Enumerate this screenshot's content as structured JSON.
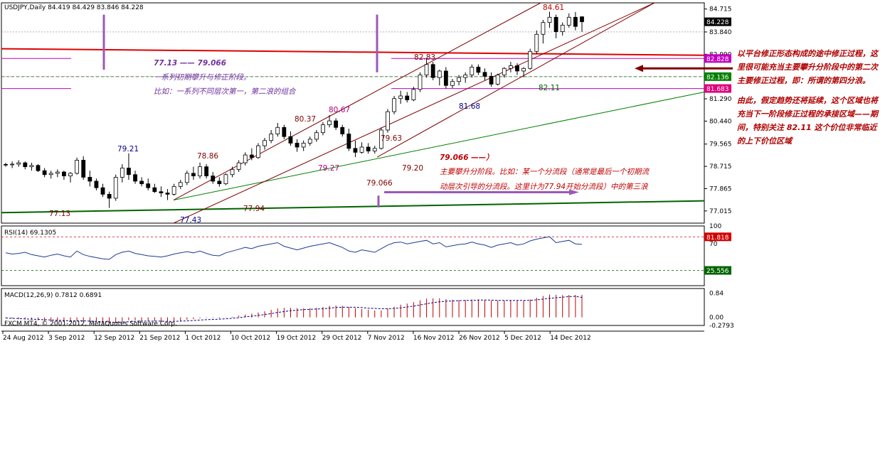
{
  "window": {
    "symbol_header": "USDJPY,Daily  84.419 84.429 83.846 84.228",
    "copyright": "FXCM MT4, © 2001-2012, MetaQuotes Software Corp."
  },
  "chart_data": [
    {
      "type": "candlestick",
      "title": "USDJPY,Daily",
      "ohlc_label": "84.419 84.429 83.846 84.228",
      "ylim": [
        76.55,
        84.95
      ],
      "y_ticks": [
        "84.715",
        "83.840",
        "82.990",
        "82.136",
        "81.290",
        "80.440",
        "79.565",
        "78.715",
        "77.865",
        "77.015"
      ],
      "x_ticks": [
        "24 Aug 2012",
        "3 Sep 2012",
        "12 Sep 2012",
        "21 Sep 2012",
        "1 Oct 2012",
        "10 Oct 2012",
        "19 Oct 2012",
        "29 Oct 2012",
        "7 Nov 2012",
        "16 Nov 2012",
        "26 Nov 2012",
        "5 Dec 2012",
        "14 Dec 2012"
      ],
      "candles_ohlc": [
        [
          78.79,
          78.85,
          78.7,
          78.78
        ],
        [
          78.78,
          78.9,
          78.65,
          78.8
        ],
        [
          78.8,
          78.95,
          78.7,
          78.85
        ],
        [
          78.85,
          78.9,
          78.6,
          78.7
        ],
        [
          78.7,
          78.85,
          78.55,
          78.75
        ],
        [
          78.75,
          78.8,
          78.5,
          78.55
        ],
        [
          78.55,
          78.65,
          78.3,
          78.4
        ],
        [
          78.4,
          78.55,
          78.25,
          78.45
        ],
        [
          78.45,
          78.6,
          78.3,
          78.5
        ],
        [
          78.5,
          78.55,
          78.2,
          78.35
        ],
        [
          78.35,
          78.5,
          78.1,
          78.45
        ],
        [
          78.45,
          79.05,
          78.4,
          78.95
        ],
        [
          78.95,
          79.1,
          78.2,
          78.3
        ],
        [
          78.3,
          78.55,
          77.95,
          78.15
        ],
        [
          78.15,
          78.25,
          77.8,
          77.9
        ],
        [
          77.9,
          78.05,
          77.55,
          77.65
        ],
        [
          77.65,
          77.75,
          77.13,
          77.5
        ],
        [
          77.5,
          78.4,
          77.4,
          78.3
        ],
        [
          78.3,
          78.8,
          78.1,
          78.65
        ],
        [
          78.65,
          79.21,
          78.2,
          78.4
        ],
        [
          78.4,
          78.55,
          78.05,
          78.15
        ],
        [
          78.15,
          78.3,
          77.95,
          78.05
        ],
        [
          78.05,
          78.25,
          77.8,
          77.9
        ],
        [
          77.9,
          78.05,
          77.7,
          77.75
        ],
        [
          77.75,
          77.95,
          77.55,
          77.7
        ],
        [
          77.7,
          77.85,
          77.43,
          77.65
        ],
        [
          77.65,
          78.05,
          77.6,
          77.95
        ],
        [
          77.95,
          78.2,
          77.85,
          78.1
        ],
        [
          78.1,
          78.55,
          78.0,
          78.45
        ],
        [
          78.45,
          78.7,
          78.2,
          78.35
        ],
        [
          78.35,
          78.86,
          78.25,
          78.7
        ],
        [
          78.7,
          78.8,
          78.25,
          78.35
        ],
        [
          78.35,
          78.5,
          78.05,
          78.15
        ],
        [
          78.15,
          78.3,
          77.94,
          78.05
        ],
        [
          78.05,
          78.45,
          78.0,
          78.4
        ],
        [
          78.4,
          78.7,
          78.3,
          78.6
        ],
        [
          78.6,
          78.95,
          78.5,
          78.85
        ],
        [
          78.85,
          79.25,
          78.75,
          79.15
        ],
        [
          79.15,
          79.4,
          78.95,
          79.05
        ],
        [
          79.05,
          79.6,
          79.0,
          79.5
        ],
        [
          79.5,
          79.8,
          79.35,
          79.7
        ],
        [
          79.7,
          80.1,
          79.6,
          79.95
        ],
        [
          79.95,
          80.37,
          79.85,
          80.2
        ],
        [
          80.2,
          80.3,
          79.75,
          79.85
        ],
        [
          79.85,
          80.05,
          79.5,
          79.6
        ],
        [
          79.6,
          79.75,
          79.27,
          79.45
        ],
        [
          79.45,
          79.7,
          79.3,
          79.6
        ],
        [
          79.6,
          79.85,
          79.5,
          79.75
        ],
        [
          79.75,
          80.1,
          79.65,
          80.0
        ],
        [
          80.0,
          80.4,
          79.9,
          80.3
        ],
        [
          80.3,
          80.67,
          80.2,
          80.45
        ],
        [
          80.45,
          80.55,
          80.1,
          80.2
        ],
        [
          80.2,
          80.3,
          79.85,
          79.95
        ],
        [
          79.95,
          80.15,
          79.3,
          79.4
        ],
        [
          79.4,
          79.7,
          79.066,
          79.25
        ],
        [
          79.25,
          79.63,
          79.2,
          79.45
        ],
        [
          79.45,
          79.6,
          79.2,
          79.3
        ],
        [
          79.3,
          79.5,
          79.2,
          79.4
        ],
        [
          79.4,
          80.2,
          79.35,
          80.1
        ],
        [
          80.1,
          80.9,
          80.0,
          80.8
        ],
        [
          80.8,
          81.4,
          80.7,
          81.3
        ],
        [
          81.3,
          81.6,
          81.1,
          81.4
        ],
        [
          81.4,
          81.55,
          81.15,
          81.25
        ],
        [
          81.25,
          81.75,
          81.2,
          81.65
        ],
        [
          81.65,
          82.3,
          81.55,
          82.2
        ],
        [
          82.2,
          82.83,
          82.1,
          82.6
        ],
        [
          82.6,
          82.7,
          82.0,
          82.1
        ],
        [
          82.1,
          82.4,
          81.8,
          82.35
        ],
        [
          82.35,
          82.5,
          81.68,
          81.8
        ],
        [
          81.8,
          82.05,
          81.7,
          81.95
        ],
        [
          81.95,
          82.2,
          81.8,
          82.1
        ],
        [
          82.1,
          82.3,
          81.9,
          82.2
        ],
        [
          82.2,
          82.6,
          82.1,
          82.5
        ],
        [
          82.5,
          82.6,
          82.2,
          82.3
        ],
        [
          82.3,
          82.45,
          82.0,
          82.15
        ],
        [
          82.15,
          82.3,
          81.75,
          81.85
        ],
        [
          81.85,
          82.25,
          81.8,
          82.2
        ],
        [
          82.2,
          82.5,
          82.1,
          82.45
        ],
        [
          82.45,
          82.7,
          82.3,
          82.55
        ],
        [
          82.55,
          82.65,
          82.2,
          82.35
        ],
        [
          82.35,
          82.5,
          82.11,
          82.45
        ],
        [
          82.45,
          83.2,
          82.4,
          83.1
        ],
        [
          83.1,
          83.9,
          83.0,
          83.75
        ],
        [
          83.75,
          84.3,
          83.4,
          84.2
        ],
        [
          84.2,
          84.61,
          84.0,
          84.4
        ],
        [
          84.4,
          84.5,
          83.6,
          83.85
        ],
        [
          83.85,
          84.2,
          83.7,
          84.1
        ],
        [
          84.1,
          84.55,
          84.0,
          84.4
        ],
        [
          84.4,
          84.6,
          83.9,
          84.05
        ],
        [
          84.419,
          84.429,
          83.846,
          84.228
        ]
      ],
      "last_price": "84.228",
      "price_tags": [
        {
          "price": 82.828,
          "label": "82.828"
        },
        {
          "price": 82.136,
          "label": "82.136"
        },
        {
          "price": 81.683,
          "label": "81.683"
        }
      ],
      "value_labels": [
        {
          "text": "77.13",
          "color": "#800000"
        },
        {
          "text": "79.21",
          "color": "#00008b"
        },
        {
          "text": "78.86",
          "color": "#800000"
        },
        {
          "text": "77.43",
          "color": "#00008b"
        },
        {
          "text": "77.94",
          "color": "#800000"
        },
        {
          "text": "80.37",
          "color": "#800000"
        },
        {
          "text": "79.27",
          "color": "#b0007b"
        },
        {
          "text": "80.67",
          "color": "#b0007b"
        },
        {
          "text": "79.63",
          "color": "#800000"
        },
        {
          "text": "79.20",
          "color": "#800000"
        },
        {
          "text": "79.066",
          "color": "#800000"
        },
        {
          "text": "82.83",
          "color": "#800000"
        },
        {
          "text": "81.68",
          "color": "#00008b"
        },
        {
          "text": "82.11",
          "color": "#006400"
        },
        {
          "text": "84.61",
          "color": "#c00000"
        }
      ],
      "in_chart_notes": [
        {
          "text": "77.13 —— 79.066",
          "color": "#7030a0",
          "weight": "bold"
        },
        {
          "text": "一系列初期攀升与修正阶段。",
          "color": "#7030a0",
          "weight": "normal"
        },
        {
          "text": "比如：一系列不同层次第一，第二浪的组合",
          "color": "#7030a0",
          "weight": "normal"
        },
        {
          "text": "79.066 ——）",
          "color": "#c00000",
          "weight": "bold"
        },
        {
          "text": "主要攀升分阶段。比如：某一个分流段（通常是最后一个初期流",
          "color": "#c00000",
          "weight": "normal"
        },
        {
          "text": "动层次引导的分流段。这里计为77.94开始分流段）中的第三浪",
          "color": "#c00000",
          "weight": "normal"
        }
      ]
    },
    {
      "type": "line",
      "title": "RSI(14) 69.1305",
      "ylim": [
        0,
        100
      ],
      "y_ticks": [
        "100",
        "70"
      ],
      "levels": [
        {
          "label": "81.818",
          "color": "#d40000"
        },
        {
          "label": "25.556",
          "color": "#006400"
        }
      ],
      "values": [
        55,
        53,
        54,
        56,
        52,
        50,
        48,
        51,
        53,
        50,
        48,
        58,
        52,
        49,
        47,
        45,
        44,
        52,
        56,
        58,
        54,
        52,
        50,
        49,
        48,
        50,
        53,
        55,
        57,
        55,
        58,
        54,
        51,
        50,
        55,
        58,
        61,
        64,
        62,
        66,
        68,
        70,
        72,
        66,
        63,
        60,
        63,
        66,
        68,
        70,
        72,
        68,
        64,
        58,
        56,
        60,
        58,
        56,
        62,
        68,
        72,
        73,
        70,
        72,
        74,
        76,
        70,
        72,
        65,
        67,
        69,
        70,
        73,
        70,
        68,
        64,
        68,
        70,
        72,
        68,
        70,
        75,
        78,
        80,
        82,
        72,
        74,
        76,
        70,
        69.13
      ]
    },
    {
      "type": "bar",
      "title": "MACD(12,26,9) 0.7812 0.6891",
      "ylim": [
        -0.2793,
        1.0
      ],
      "y_ticks": [
        "0.84",
        "0.00",
        "-0.2793"
      ],
      "values": [
        -0.02,
        -0.04,
        -0.06,
        -0.07,
        -0.08,
        -0.1,
        -0.12,
        -0.13,
        -0.14,
        -0.15,
        -0.16,
        -0.12,
        -0.13,
        -0.15,
        -0.17,
        -0.2,
        -0.23,
        -0.2,
        -0.15,
        -0.1,
        -0.1,
        -0.11,
        -0.12,
        -0.13,
        -0.15,
        -0.16,
        -0.14,
        -0.12,
        -0.08,
        -0.06,
        -0.03,
        -0.02,
        -0.02,
        -0.03,
        -0.01,
        0.02,
        0.06,
        0.1,
        0.13,
        0.17,
        0.21,
        0.26,
        0.31,
        0.33,
        0.33,
        0.32,
        0.31,
        0.32,
        0.33,
        0.36,
        0.4,
        0.41,
        0.4,
        0.36,
        0.32,
        0.29,
        0.27,
        0.24,
        0.24,
        0.3,
        0.37,
        0.44,
        0.48,
        0.53,
        0.59,
        0.65,
        0.66,
        0.66,
        0.63,
        0.61,
        0.6,
        0.6,
        0.62,
        0.62,
        0.61,
        0.58,
        0.58,
        0.58,
        0.59,
        0.59,
        0.58,
        0.62,
        0.68,
        0.74,
        0.79,
        0.78,
        0.77,
        0.78,
        0.78,
        0.78
      ],
      "signal": [
        -0.02,
        -0.03,
        -0.04,
        -0.05,
        -0.06,
        -0.07,
        -0.08,
        -0.09,
        -0.1,
        -0.11,
        -0.12,
        -0.12,
        -0.12,
        -0.13,
        -0.14,
        -0.15,
        -0.16,
        -0.17,
        -0.16,
        -0.15,
        -0.14,
        -0.13,
        -0.13,
        -0.13,
        -0.13,
        -0.14,
        -0.14,
        -0.13,
        -0.12,
        -0.11,
        -0.09,
        -0.08,
        -0.07,
        -0.06,
        -0.05,
        -0.03,
        -0.01,
        0.02,
        0.04,
        0.07,
        0.1,
        0.13,
        0.17,
        0.2,
        0.23,
        0.25,
        0.27,
        0.28,
        0.29,
        0.3,
        0.32,
        0.34,
        0.35,
        0.35,
        0.35,
        0.34,
        0.32,
        0.31,
        0.3,
        0.3,
        0.31,
        0.33,
        0.36,
        0.39,
        0.43,
        0.47,
        0.51,
        0.54,
        0.56,
        0.57,
        0.58,
        0.59,
        0.59,
        0.6,
        0.6,
        0.6,
        0.59,
        0.59,
        0.59,
        0.59,
        0.59,
        0.59,
        0.61,
        0.63,
        0.66,
        0.68,
        0.7,
        0.72,
        0.73,
        0.6891
      ]
    }
  ],
  "side_notes": [
    "以平台修正形态构成的途中修正过程，这里很可能充当主要攀升分阶段中的第二次主要修正过程，即：所谓的第四分浪。",
    "由此，假定趋势还将延续，这个区域也将充当下一阶段修正过程的承接区域——期间，特别关注 82.11 这个价位非常临近的上下价位区域"
  ],
  "colors": {
    "bull_body": "#ffffff",
    "bear_body": "#000000",
    "candle_wick": "#000000",
    "channel": "#800000",
    "support_green": "#008000",
    "dark_green_base": "#006400",
    "red_line": "#e00000",
    "magenta_box": "#c000c0",
    "purple_marker": "#9b59b6",
    "rsi_line": "#1f3a93",
    "macd_hist": "#c00000",
    "macd_signal": "#00008b",
    "axis_text": "#000000"
  }
}
